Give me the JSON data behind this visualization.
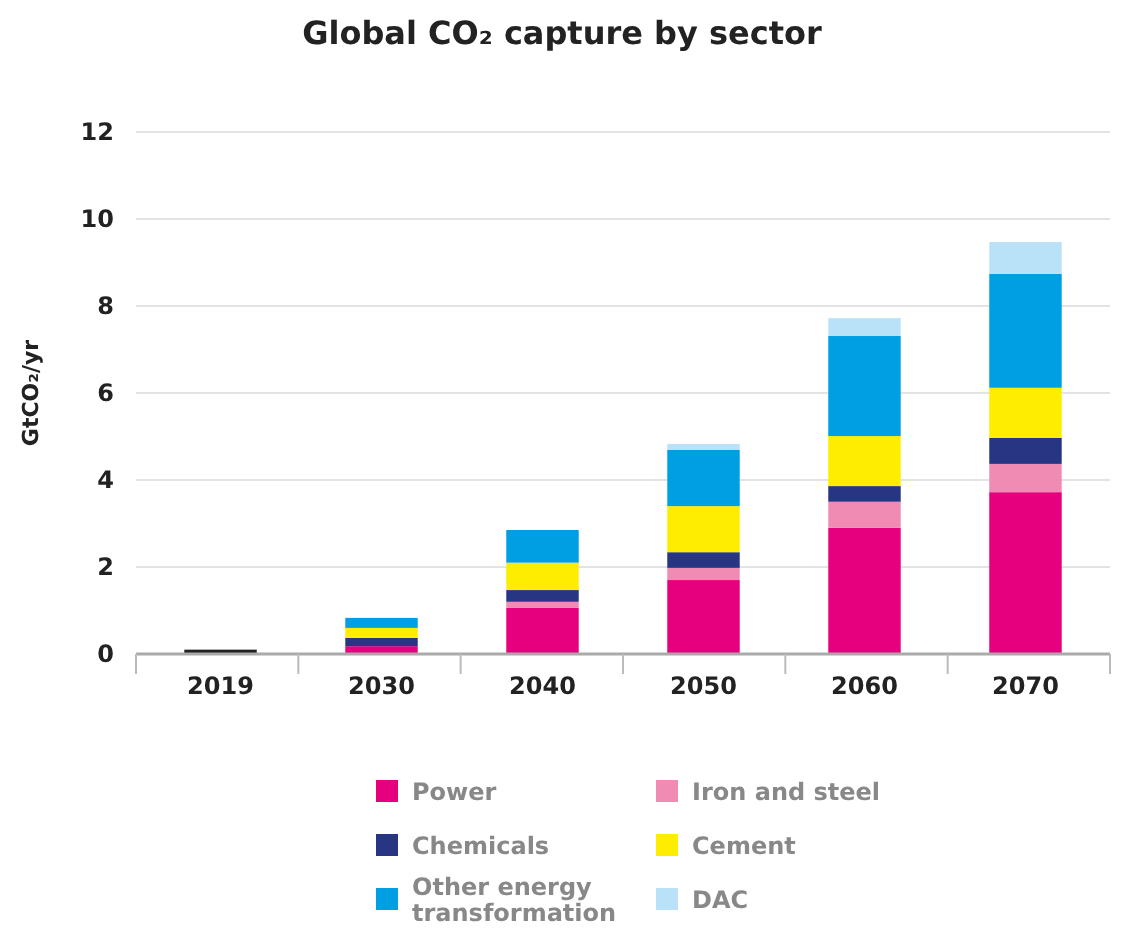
{
  "chart_data": {
    "type": "bar",
    "title": "Global CO₂ capture by sector",
    "ylabel": "GtCO₂/yr",
    "categories": [
      "2019",
      "2030",
      "2040",
      "2050",
      "2060",
      "2070"
    ],
    "stacked": true,
    "ylim": [
      0,
      12
    ],
    "yticks": [
      0,
      2,
      4,
      6,
      8,
      10,
      12
    ],
    "grid": "y",
    "legend": "bottom",
    "series": [
      {
        "color": "#222222",
        "values": [
          0.1,
          null,
          null,
          null,
          null,
          null
        ]
      },
      {
        "name": "Power",
        "color": "#e6007e",
        "values": [
          null,
          0.18,
          1.06,
          1.7,
          2.9,
          3.72
        ]
      },
      {
        "name": "Iron and steel",
        "color": "#f08bb4",
        "values": [
          null,
          null,
          0.14,
          0.28,
          0.6,
          0.65
        ]
      },
      {
        "name": "Chemicals",
        "color": "#283583",
        "values": [
          null,
          0.19,
          0.27,
          0.36,
          0.36,
          0.6
        ]
      },
      {
        "name": "Cement",
        "color": "#ffed00",
        "values": [
          null,
          0.23,
          0.63,
          1.06,
          1.15,
          1.15
        ]
      },
      {
        "name": "Other energy transformation",
        "color": "#009fe3",
        "values": [
          null,
          0.23,
          0.75,
          1.29,
          2.3,
          2.62
        ]
      },
      {
        "name": "DAC",
        "color": "#b9e2f8",
        "values": [
          null,
          null,
          null,
          0.14,
          0.41,
          0.73
        ]
      }
    ]
  }
}
